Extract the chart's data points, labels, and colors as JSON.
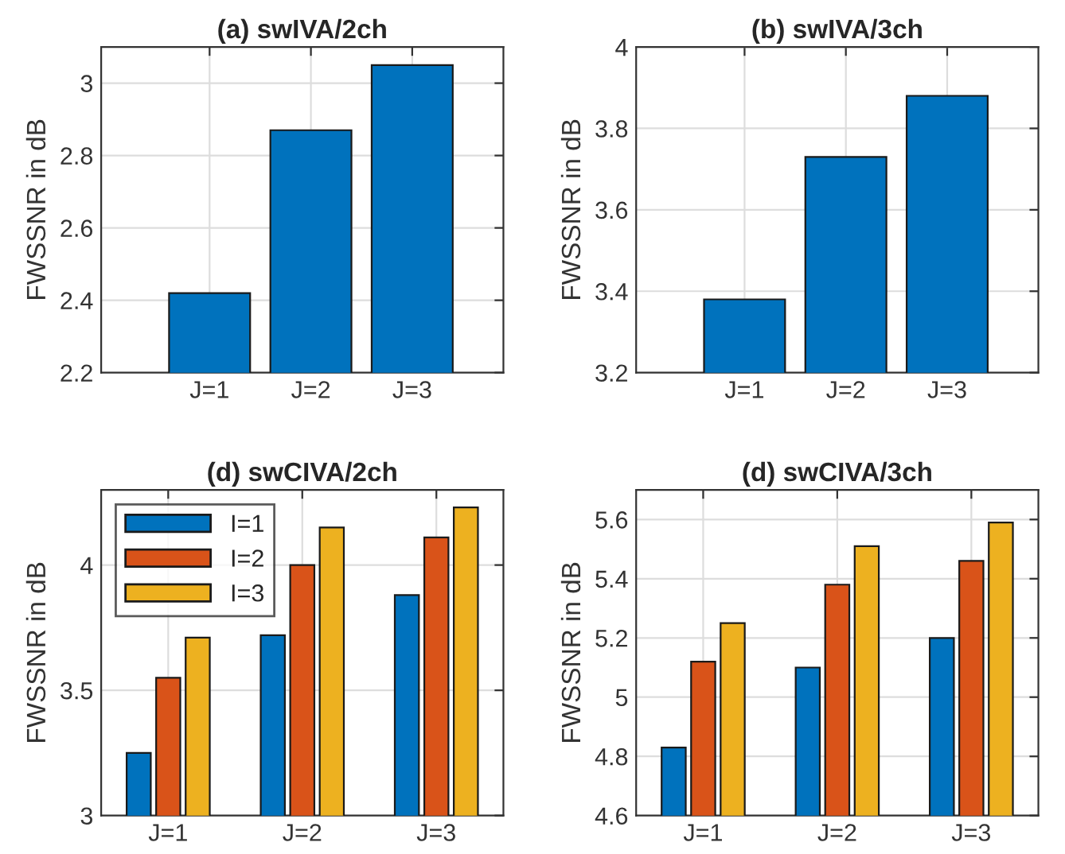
{
  "chart_data": [
    {
      "type": "bar",
      "title": "(a) swIVA/2ch",
      "ylabel": "FWSSNR in dB",
      "categories": [
        "J=1",
        "J=2",
        "J=3"
      ],
      "series": [
        {
          "color": "#0072bd",
          "values": [
            2.42,
            2.87,
            3.05
          ]
        }
      ],
      "ylim": [
        2.2,
        3.1
      ],
      "yticks": [
        2.2,
        2.4,
        2.6,
        2.8,
        3
      ],
      "grid": true
    },
    {
      "type": "bar",
      "title": "(b) swIVA/3ch",
      "ylabel": "FWSSNR in dB",
      "categories": [
        "J=1",
        "J=2",
        "J=3"
      ],
      "series": [
        {
          "color": "#0072bd",
          "values": [
            3.38,
            3.73,
            3.88
          ]
        }
      ],
      "ylim": [
        3.2,
        4
      ],
      "yticks": [
        3.2,
        3.4,
        3.6,
        3.8,
        4
      ],
      "grid": true
    },
    {
      "type": "bar",
      "title": "(d) swCIVA/2ch",
      "ylabel": "FWSSNR in dB",
      "categories": [
        "J=1",
        "J=2",
        "J=3"
      ],
      "series": [
        {
          "name": "I=1",
          "color": "#0072bd",
          "values": [
            3.25,
            3.72,
            3.88
          ]
        },
        {
          "name": "I=2",
          "color": "#d95319",
          "values": [
            3.55,
            4.0,
            4.11
          ]
        },
        {
          "name": "I=3",
          "color": "#edb120",
          "values": [
            3.71,
            4.15,
            4.23
          ]
        }
      ],
      "ylim": [
        3,
        4.3
      ],
      "yticks": [
        3,
        3.5,
        4
      ],
      "grid": true,
      "legend": "top left"
    },
    {
      "type": "bar",
      "title": "(d) swCIVA/3ch",
      "ylabel": "FWSSNR in dB",
      "categories": [
        "J=1",
        "J=2",
        "J=3"
      ],
      "series": [
        {
          "color": "#0072bd",
          "values": [
            4.83,
            5.1,
            5.2
          ]
        },
        {
          "color": "#d95319",
          "values": [
            5.12,
            5.38,
            5.46
          ]
        },
        {
          "color": "#edb120",
          "values": [
            5.25,
            5.51,
            5.59
          ]
        }
      ],
      "ylim": [
        4.6,
        5.7
      ],
      "yticks": [
        4.6,
        4.8,
        5,
        5.2,
        5.4,
        5.6
      ],
      "grid": true
    }
  ]
}
